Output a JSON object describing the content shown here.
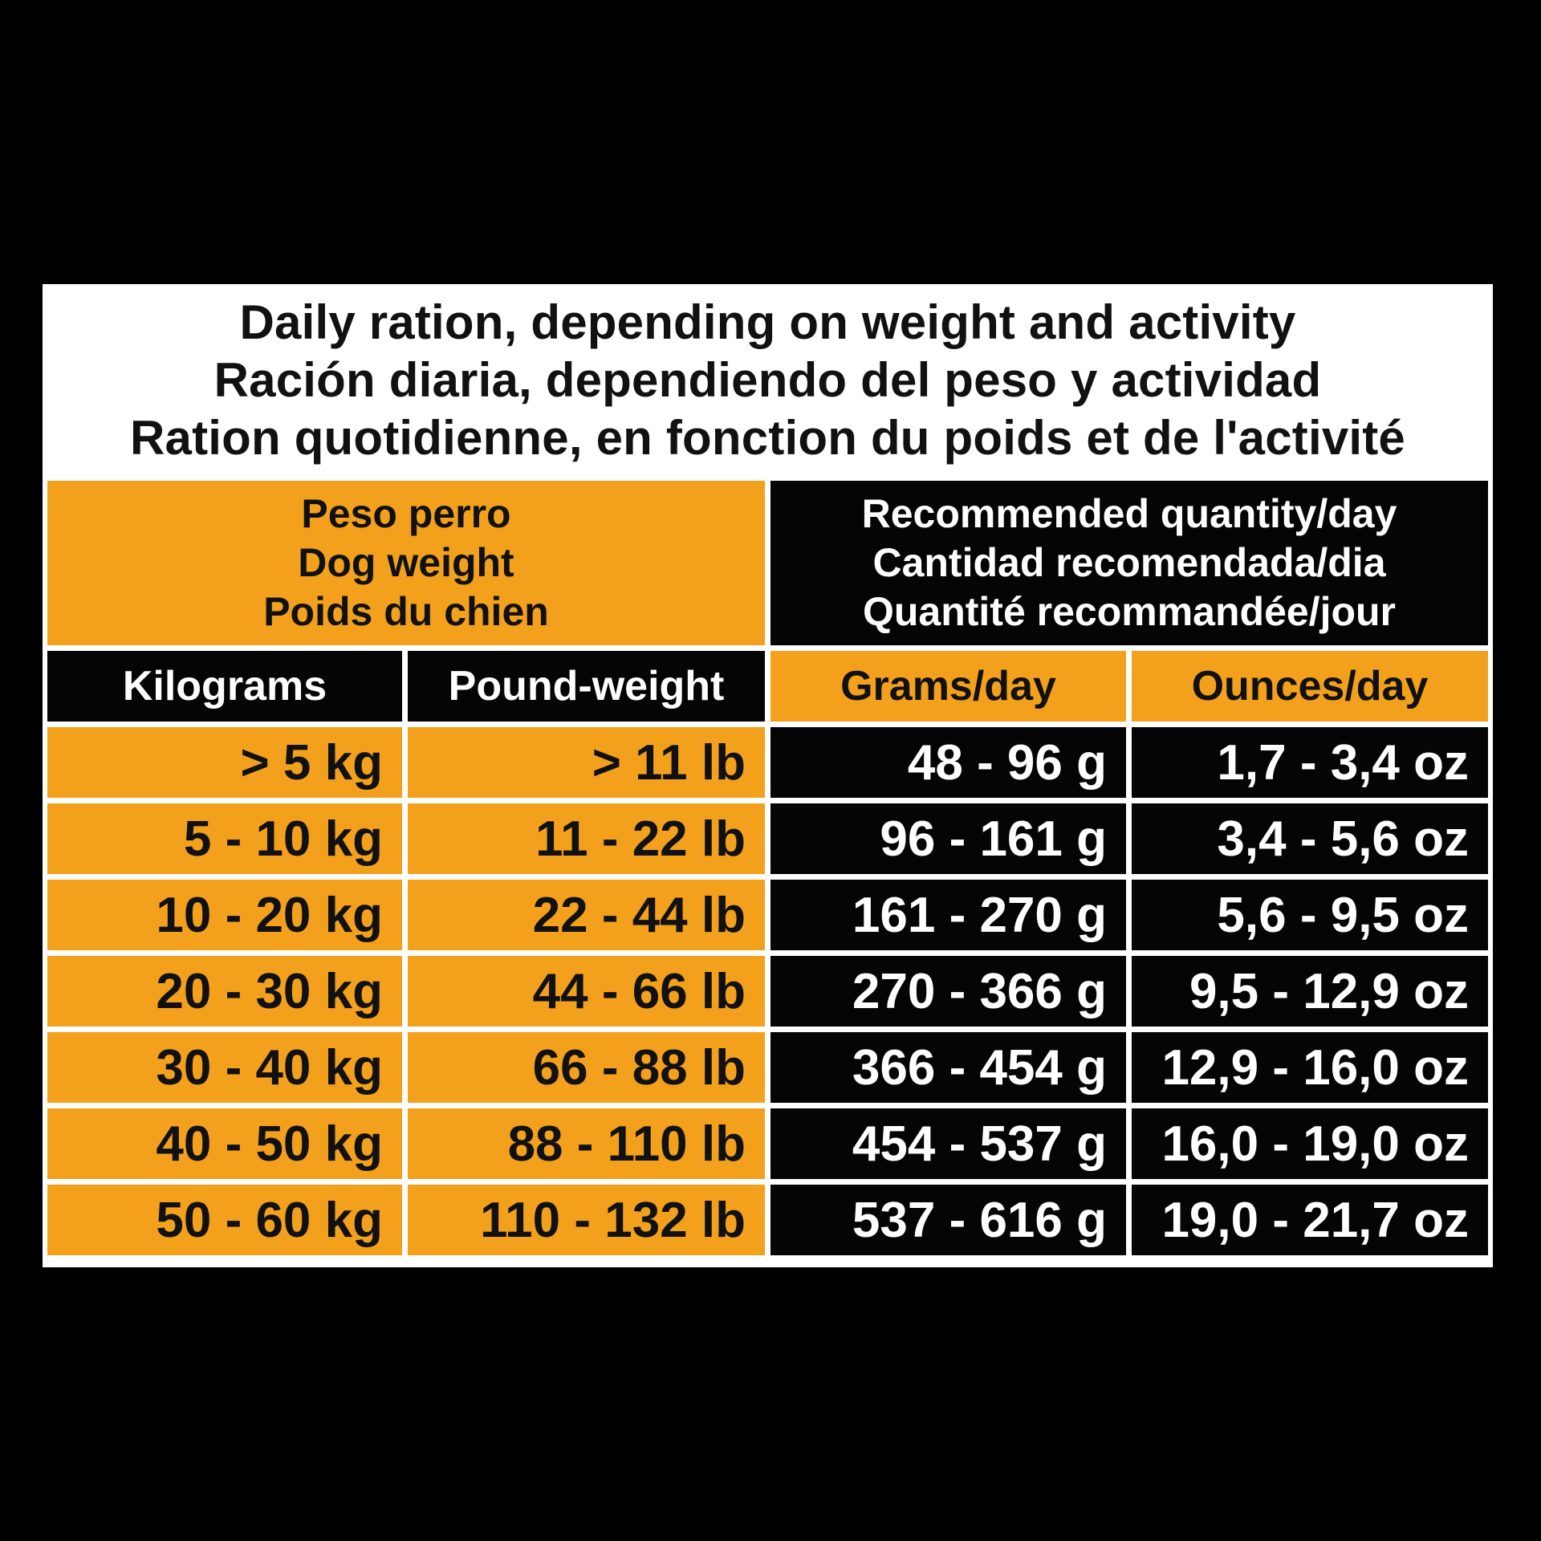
{
  "title_lines": [
    "Daily ration, depending on weight and activity",
    "Ración diaria, dependiendo del peso y actividad",
    "Ration quotidienne, en fonction du poids et de l'activité"
  ],
  "group_headers": {
    "dog_weight": [
      "Peso perro",
      "Dog weight",
      "Poids du chien"
    ],
    "quantity": [
      "Recommended quantity/day",
      "Cantidad recomendada/dia",
      "Quantité recommandée/jour"
    ]
  },
  "columns": [
    "Kilograms",
    "Pound-weight",
    "Grams/day",
    "Ounces/day"
  ],
  "rows": [
    [
      "> 5 kg",
      "> 11 lb",
      "48 - 96 g",
      "1,7 - 3,4 oz"
    ],
    [
      "5 - 10 kg",
      "11 - 22 lb",
      "96 - 161 g",
      "3,4 - 5,6 oz"
    ],
    [
      "10 - 20 kg",
      "22 - 44 lb",
      "161 - 270 g",
      "5,6 - 9,5 oz"
    ],
    [
      "20 - 30 kg",
      "44 - 66 lb",
      "270 - 366 g",
      "9,5 - 12,9 oz"
    ],
    [
      "30 - 40 kg",
      "66 - 88 lb",
      "366 - 454 g",
      "12,9 - 16,0 oz"
    ],
    [
      "40 - 50 kg",
      "88 - 110 lb",
      "454 - 537 g",
      "16,0 - 19,0 oz"
    ],
    [
      "50 - 60 kg",
      "110 - 132 lb",
      "537 - 616 g",
      "19,0 - 21,7 oz"
    ]
  ],
  "colors": {
    "background": "#000000",
    "accent_orange": "#f3a11d",
    "cell_black": "#050505",
    "panel_white": "#ffffff"
  }
}
